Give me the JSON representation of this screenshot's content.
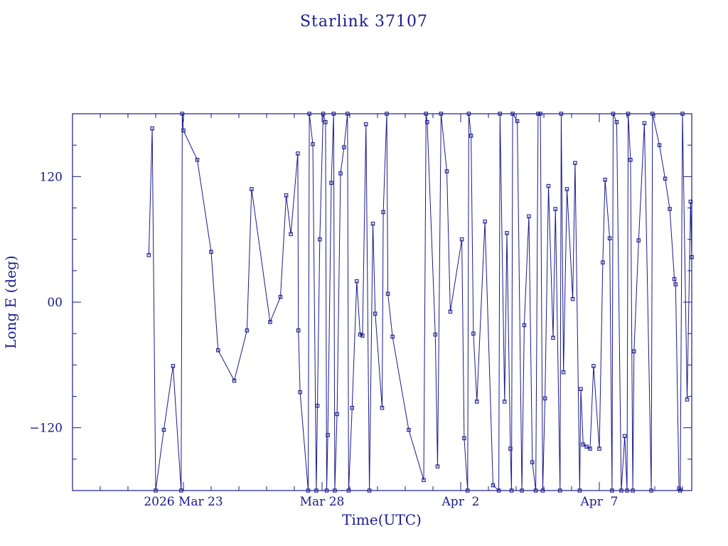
{
  "colors": {
    "line": "#1a1a8c",
    "background": "#ffffff"
  },
  "chart_data": {
    "type": "line",
    "title": "Starlink 37107",
    "xlabel": "Time(UTC)",
    "ylabel": "Long E (deg)",
    "xlim": [
      "2026-03-19T00:00",
      "2026-04-10T08:00"
    ],
    "ylim": [
      -180,
      180
    ],
    "grid": false,
    "x_ticks": [
      {
        "x": "2026-03-23T00:00",
        "label": "2026 Mar 23"
      },
      {
        "x": "2026-03-28T00:00",
        "label": "Mar 28"
      },
      {
        "x": "2026-04-02T00:00",
        "label": "Apr  2"
      },
      {
        "x": "2026-04-07T00:00",
        "label": "Apr  7"
      }
    ],
    "y_ticks": [
      {
        "y": 120,
        "label": "120"
      },
      {
        "y": 0,
        "label": "00"
      },
      {
        "y": -120,
        "label": "−120"
      }
    ],
    "series": [
      {
        "points": [
          [
            "2026-03-21T18:00",
            45
          ],
          [
            "2026-03-21T21:00",
            166
          ],
          [
            "2026-03-22T00:00",
            -180
          ],
          [
            "2026-03-22T07:00",
            -122
          ],
          [
            "2026-03-22T15:00",
            -61
          ],
          [
            "2026-03-22T22:00",
            -180
          ],
          [
            "2026-03-22T23:00",
            180
          ],
          [
            "2026-03-23T00:00",
            164
          ],
          [
            "2026-03-23T12:00",
            136
          ],
          [
            "2026-03-24T00:00",
            48
          ],
          [
            "2026-03-24T06:00",
            -46
          ],
          [
            "2026-03-24T20:00",
            -75
          ],
          [
            "2026-03-25T07:00",
            -27
          ],
          [
            "2026-03-25T11:00",
            108
          ],
          [
            "2026-03-26T03:00",
            -19
          ],
          [
            "2026-03-26T12:00",
            5
          ],
          [
            "2026-03-26T17:00",
            102
          ],
          [
            "2026-03-26T21:00",
            65
          ],
          [
            "2026-03-27T03:00",
            142
          ],
          [
            "2026-03-27T03:30",
            -27
          ],
          [
            "2026-03-27T05:00",
            -86
          ],
          [
            "2026-03-27T12:00",
            -180
          ],
          [
            "2026-03-27T13:00",
            180
          ],
          [
            "2026-03-27T16:00",
            151
          ],
          [
            "2026-03-27T19:00",
            -180
          ],
          [
            "2026-03-27T20:00",
            -99
          ],
          [
            "2026-03-27T22:00",
            60
          ],
          [
            "2026-03-28T01:00",
            180
          ],
          [
            "2026-03-28T03:00",
            172
          ],
          [
            "2026-03-28T04:00",
            -180
          ],
          [
            "2026-03-28T05:00",
            -127
          ],
          [
            "2026-03-28T08:00",
            114
          ],
          [
            "2026-03-28T10:00",
            180
          ],
          [
            "2026-03-28T11:00",
            -180
          ],
          [
            "2026-03-28T13:00",
            -107
          ],
          [
            "2026-03-28T16:00",
            123
          ],
          [
            "2026-03-28T19:00",
            148
          ],
          [
            "2026-03-28T22:00",
            180
          ],
          [
            "2026-03-28T23:00",
            -180
          ],
          [
            "2026-03-29T02:00",
            -101
          ],
          [
            "2026-03-29T06:00",
            20
          ],
          [
            "2026-03-29T09:00",
            -31
          ],
          [
            "2026-03-29T11:00",
            -32
          ],
          [
            "2026-03-29T14:00",
            170
          ],
          [
            "2026-03-29T17:00",
            -180
          ],
          [
            "2026-03-29T20:00",
            75
          ],
          [
            "2026-03-29T22:00",
            -11
          ],
          [
            "2026-03-30T04:00",
            -101
          ],
          [
            "2026-03-30T05:00",
            86
          ],
          [
            "2026-03-30T08:00",
            180
          ],
          [
            "2026-03-30T09:00",
            8
          ],
          [
            "2026-03-30T13:00",
            -33
          ],
          [
            "2026-03-31T03:00",
            -122
          ],
          [
            "2026-03-31T16:00",
            -170
          ],
          [
            "2026-03-31T18:00",
            180
          ],
          [
            "2026-03-31T19:00",
            172
          ],
          [
            "2026-04-01T02:00",
            -31
          ],
          [
            "2026-04-01T04:00",
            -157
          ],
          [
            "2026-04-01T07:00",
            180
          ],
          [
            "2026-04-01T12:00",
            125
          ],
          [
            "2026-04-01T15:00",
            -9
          ],
          [
            "2026-04-02T01:00",
            60
          ],
          [
            "2026-04-02T03:00",
            -130
          ],
          [
            "2026-04-02T06:00",
            -180
          ],
          [
            "2026-04-02T07:00",
            180
          ],
          [
            "2026-04-02T09:00",
            159
          ],
          [
            "2026-04-02T11:00",
            -30
          ],
          [
            "2026-04-02T14:00",
            -95
          ],
          [
            "2026-04-02T21:00",
            77
          ],
          [
            "2026-04-03T04:00",
            -175
          ],
          [
            "2026-04-03T09:00",
            -180
          ],
          [
            "2026-04-03T10:00",
            180
          ],
          [
            "2026-04-03T14:00",
            -95
          ],
          [
            "2026-04-03T16:00",
            66
          ],
          [
            "2026-04-03T19:00",
            -140
          ],
          [
            "2026-04-03T20:00",
            -180
          ],
          [
            "2026-04-03T21:00",
            180
          ],
          [
            "2026-04-04T01:00",
            173
          ],
          [
            "2026-04-04T05:00",
            -180
          ],
          [
            "2026-04-04T07:00",
            -22
          ],
          [
            "2026-04-04T11:00",
            82
          ],
          [
            "2026-04-04T14:00",
            -153
          ],
          [
            "2026-04-04T17:00",
            -180
          ],
          [
            "2026-04-04T19:00",
            180
          ],
          [
            "2026-04-04T21:00",
            180
          ],
          [
            "2026-04-04T23:00",
            -180
          ],
          [
            "2026-04-05T01:00",
            -92
          ],
          [
            "2026-04-05T04:00",
            111
          ],
          [
            "2026-04-05T08:00",
            -34
          ],
          [
            "2026-04-05T10:00",
            89
          ],
          [
            "2026-04-05T14:00",
            -180
          ],
          [
            "2026-04-05T15:00",
            180
          ],
          [
            "2026-04-05T17:00",
            -67
          ],
          [
            "2026-04-05T20:00",
            108
          ],
          [
            "2026-04-06T01:00",
            3
          ],
          [
            "2026-04-06T03:00",
            133
          ],
          [
            "2026-04-06T07:00",
            -180
          ],
          [
            "2026-04-06T08:00",
            -83
          ],
          [
            "2026-04-06T10:00",
            -136
          ],
          [
            "2026-04-06T13:00",
            -138
          ],
          [
            "2026-04-06T16:00",
            -140
          ],
          [
            "2026-04-06T19:00",
            -61
          ],
          [
            "2026-04-07T00:00",
            -140
          ],
          [
            "2026-04-07T03:00",
            38
          ],
          [
            "2026-04-07T05:00",
            117
          ],
          [
            "2026-04-07T09:00",
            61
          ],
          [
            "2026-04-07T11:00",
            -180
          ],
          [
            "2026-04-07T12:00",
            180
          ],
          [
            "2026-04-07T15:00",
            172
          ],
          [
            "2026-04-07T19:00",
            -180
          ],
          [
            "2026-04-07T22:00",
            -128
          ],
          [
            "2026-04-08T00:00",
            -180
          ],
          [
            "2026-04-08T01:00",
            180
          ],
          [
            "2026-04-08T03:00",
            136
          ],
          [
            "2026-04-08T05:00",
            -180
          ],
          [
            "2026-04-08T06:00",
            -47
          ],
          [
            "2026-04-08T10:00",
            59
          ],
          [
            "2026-04-08T15:00",
            171
          ],
          [
            "2026-04-08T21:00",
            -180
          ],
          [
            "2026-04-08T22:00",
            180
          ],
          [
            "2026-04-09T04:00",
            150
          ],
          [
            "2026-04-09T09:00",
            118
          ],
          [
            "2026-04-09T13:00",
            89
          ],
          [
            "2026-04-09T17:00",
            22
          ],
          [
            "2026-04-09T18:00",
            17
          ],
          [
            "2026-04-09T21:00",
            -178
          ],
          [
            "2026-04-09T22:00",
            -180
          ],
          [
            "2026-04-10T00:00",
            180
          ],
          [
            "2026-04-10T04:00",
            -93
          ],
          [
            "2026-04-10T07:00",
            96
          ],
          [
            "2026-04-10T08:00",
            43
          ]
        ]
      }
    ]
  }
}
